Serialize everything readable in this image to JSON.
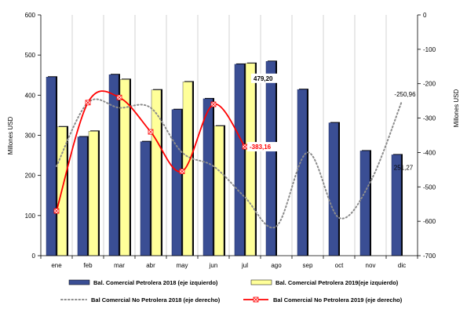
{
  "chart_data": {
    "type": "bar",
    "categories": [
      "ene",
      "feb",
      "mar",
      "abr",
      "may",
      "jun",
      "jul",
      "ago",
      "sep",
      "oct",
      "nov",
      "dic"
    ],
    "ylabel_left": "Millones USD",
    "ylabel_right": "Millones USD",
    "ylim_left": [
      0,
      600
    ],
    "ylim_right": [
      -700,
      0
    ],
    "yticks_left": [
      0,
      100,
      200,
      300,
      400,
      500,
      600
    ],
    "yticks_right": [
      0,
      -100,
      -200,
      -300,
      -400,
      -500,
      -600,
      -700
    ],
    "yticks_left_labels": [
      "0",
      "100",
      "200",
      "300",
      "400",
      "500",
      "600"
    ],
    "yticks_right_labels": [
      "0",
      "-100",
      "-200",
      "-300",
      "-400",
      "-500",
      "-600",
      "-700"
    ],
    "grid": "vertical",
    "legend_position": "bottom",
    "series": [
      {
        "name": "Bal. Comercial Petrolera 2018 (eje izquierdo)",
        "type": "bar",
        "axis": "left",
        "color": "#3a4e94",
        "values": [
          445,
          296,
          451,
          284,
          364,
          391,
          477,
          484,
          414,
          331,
          261,
          251.27
        ]
      },
      {
        "name": "Bal. Comercial Petrolera 2019(eje izquierdo)",
        "type": "bar",
        "axis": "left",
        "color": "#ffff99",
        "values": [
          321,
          310,
          439,
          413,
          433,
          323,
          479.2,
          null,
          null,
          null,
          null,
          null
        ]
      },
      {
        "name": "Bal Comercial No Petrolera 2018 (eje derecho)",
        "type": "line",
        "style": "dotted",
        "axis": "right",
        "color": "#8c8c8c",
        "values": [
          -440,
          -255,
          -270,
          -270,
          -400,
          -440,
          -530,
          -615,
          -400,
          -590,
          -485,
          -250.96
        ]
      },
      {
        "name": "Bal Comercial No Petrolera 2019 (eje derecho)",
        "type": "line",
        "axis": "right",
        "color": "#ff0000",
        "values": [
          -570,
          -255,
          -240,
          -340,
          -455,
          -260,
          -383.16,
          null,
          null,
          null,
          null,
          null
        ]
      }
    ],
    "data_labels": {
      "jul_bar_2019": "479,20",
      "jul_line_2019": "-383,16",
      "dic_line_2018": "-250,96",
      "dic_bar_2018": "251,27"
    }
  }
}
